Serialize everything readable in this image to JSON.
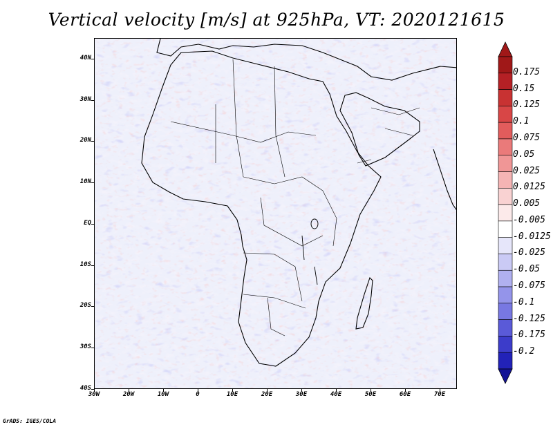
{
  "title": "Vertical velocity [m/s] at 925hPa, VT: 2020121615",
  "credit": "GrADS: IGES/COLA",
  "map": {
    "lon_range": [
      -30,
      75
    ],
    "lat_range": [
      -40,
      45
    ],
    "lat_ticks": [
      {
        "value": 40,
        "label": "40N"
      },
      {
        "value": 30,
        "label": "30N"
      },
      {
        "value": 20,
        "label": "20N"
      },
      {
        "value": 10,
        "label": "10N"
      },
      {
        "value": 0,
        "label": "EQ"
      },
      {
        "value": -10,
        "label": "10S"
      },
      {
        "value": -20,
        "label": "20S"
      },
      {
        "value": -30,
        "label": "30S"
      },
      {
        "value": -40,
        "label": "40S"
      }
    ],
    "lon_ticks": [
      {
        "value": -30,
        "label": "30W"
      },
      {
        "value": -20,
        "label": "20W"
      },
      {
        "value": -10,
        "label": "10W"
      },
      {
        "value": 0,
        "label": "0"
      },
      {
        "value": 10,
        "label": "10E"
      },
      {
        "value": 20,
        "label": "20E"
      },
      {
        "value": 30,
        "label": "30E"
      },
      {
        "value": 40,
        "label": "40E"
      },
      {
        "value": 50,
        "label": "50E"
      },
      {
        "value": 60,
        "label": "60E"
      },
      {
        "value": 70,
        "label": "70E"
      }
    ]
  },
  "colorbar": {
    "levels": [
      {
        "label": "0.175",
        "color": "#b52025"
      },
      {
        "label": "0.15",
        "color": "#c83232"
      },
      {
        "label": "0.125",
        "color": "#d84646"
      },
      {
        "label": "0.1",
        "color": "#e25c5c"
      },
      {
        "label": "0.075",
        "color": "#ea7a7a"
      },
      {
        "label": "0.05",
        "color": "#f09696"
      },
      {
        "label": "0.025",
        "color": "#f5b4b4"
      },
      {
        "label": "0.0125",
        "color": "#f9d2d2"
      },
      {
        "label": "0.005",
        "color": "#fceaea"
      },
      {
        "label": "-0.005",
        "color": "#ffffff"
      },
      {
        "label": "-0.0125",
        "color": "#e6e6fa"
      },
      {
        "label": "-0.025",
        "color": "#cacaf5"
      },
      {
        "label": "-0.05",
        "color": "#b0b0f0"
      },
      {
        "label": "-0.075",
        "color": "#9494ea"
      },
      {
        "label": "-0.1",
        "color": "#7878e2"
      },
      {
        "label": "-0.125",
        "color": "#5a5ad8"
      },
      {
        "label": "-0.175",
        "color": "#3c3cca"
      },
      {
        "label": "-0.2",
        "color": "#2222b8"
      }
    ],
    "top_color": "#a01818",
    "bottom_color": "#141496"
  }
}
